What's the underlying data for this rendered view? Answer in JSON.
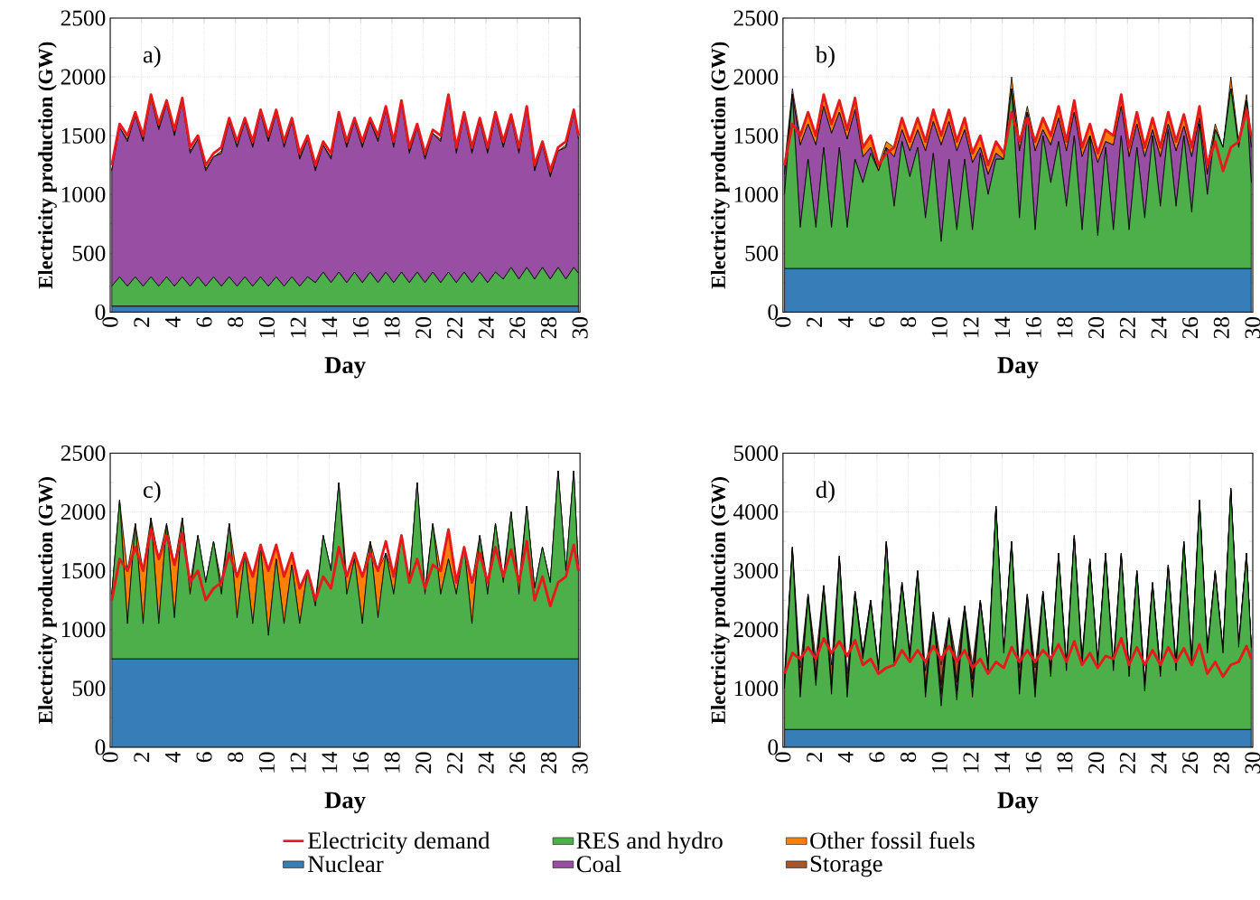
{
  "chart_data": [
    {
      "type": "area",
      "stacked": true,
      "xlabel": "Day",
      "ylabel": "Electricity production (GW)",
      "annotations": [
        "a)"
      ],
      "grid": true,
      "xlim": [
        0,
        30
      ],
      "xticks": [
        0,
        2,
        4,
        6,
        8,
        10,
        12,
        14,
        16,
        18,
        20,
        22,
        24,
        26,
        28,
        30
      ],
      "ylim": [
        0,
        2500
      ],
      "yticks": [
        0,
        500,
        1000,
        1500,
        2000,
        2500
      ],
      "x": [
        0.1,
        0.6,
        1.1,
        1.6,
        2.1,
        2.6,
        3.1,
        3.6,
        4.1,
        4.6,
        5.1,
        5.6,
        6.1,
        6.6,
        7.1,
        7.6,
        8.1,
        8.6,
        9.1,
        9.6,
        10.1,
        10.6,
        11.1,
        11.6,
        12.1,
        12.6,
        13.1,
        13.6,
        14.1,
        14.6,
        15.1,
        15.6,
        16.1,
        16.6,
        17.1,
        17.6,
        18.1,
        18.6,
        19.1,
        19.6,
        20.1,
        20.6,
        21.1,
        21.6,
        22.1,
        22.6,
        23.1,
        23.6,
        24.1,
        24.6,
        25.1,
        25.6,
        26.1,
        26.6,
        27.1,
        27.6,
        28.1,
        28.6,
        29.1,
        29.6,
        29.9
      ],
      "series": [
        {
          "color": "#377eb8",
          "values": [
            50,
            50,
            50,
            50,
            50,
            50,
            50,
            50,
            50,
            50,
            50,
            50,
            50,
            50,
            50,
            50,
            50,
            50,
            50,
            50,
            50,
            50,
            50,
            50,
            50,
            50,
            50,
            50,
            50,
            50,
            50,
            50,
            50,
            50,
            50,
            50,
            50,
            50,
            50,
            50,
            50,
            50,
            50,
            50,
            50,
            50,
            50,
            50,
            50,
            50,
            50,
            50,
            50,
            50,
            50,
            50,
            50,
            50,
            50,
            50,
            50
          ]
        },
        {
          "color": "#4daf4a",
          "values": [
            170,
            250,
            170,
            250,
            170,
            250,
            170,
            250,
            170,
            250,
            170,
            250,
            170,
            250,
            170,
            250,
            170,
            250,
            170,
            250,
            170,
            250,
            170,
            250,
            170,
            250,
            200,
            290,
            200,
            290,
            200,
            290,
            200,
            290,
            200,
            290,
            200,
            290,
            200,
            290,
            200,
            290,
            200,
            290,
            200,
            290,
            200,
            290,
            200,
            290,
            230,
            330,
            230,
            330,
            230,
            330,
            230,
            330,
            230,
            330,
            280
          ]
        },
        {
          "color": "#984ea3",
          "values": [
            980,
            1270,
            1230,
            1370,
            1230,
            1520,
            1330,
            1470,
            1280,
            1490,
            1130,
            1170,
            980,
            1020,
            1130,
            1320,
            1180,
            1320,
            1180,
            1390,
            1230,
            1390,
            1180,
            1320,
            1080,
            1170,
            950,
            1080,
            1050,
            1330,
            1150,
            1280,
            1150,
            1280,
            1200,
            1380,
            1150,
            1430,
            1100,
            1230,
            1050,
            1180,
            1200,
            1480,
            1100,
            1330,
            1100,
            1280,
            1100,
            1330,
            1120,
            1270,
            1070,
            1340,
            920,
            1040,
            870,
            990,
            1120,
            1310,
            1140
          ]
        },
        {
          "color": "#ff7f00",
          "values": [
            20,
            0,
            20,
            0,
            20,
            0,
            20,
            0,
            20,
            0,
            20,
            0,
            20,
            0,
            20,
            0,
            20,
            0,
            20,
            0,
            20,
            0,
            20,
            0,
            20,
            0,
            20,
            0,
            20,
            0,
            20,
            0,
            20,
            0,
            20,
            0,
            20,
            0,
            20,
            0,
            20,
            0,
            20,
            0,
            20,
            0,
            20,
            0,
            20,
            0,
            20,
            0,
            20,
            0,
            20,
            0,
            20,
            0,
            20,
            0,
            0
          ]
        },
        {
          "type": "line",
          "color": "#e41a1c",
          "values": [
            1250,
            1600,
            1500,
            1700,
            1500,
            1850,
            1600,
            1800,
            1550,
            1820,
            1400,
            1500,
            1250,
            1350,
            1400,
            1650,
            1450,
            1650,
            1450,
            1720,
            1500,
            1720,
            1450,
            1650,
            1350,
            1500,
            1250,
            1450,
            1350,
            1700,
            1450,
            1650,
            1450,
            1650,
            1500,
            1750,
            1450,
            1800,
            1400,
            1600,
            1350,
            1550,
            1500,
            1850,
            1400,
            1700,
            1400,
            1650,
            1400,
            1700,
            1450,
            1680,
            1400,
            1750,
            1250,
            1450,
            1200,
            1400,
            1450,
            1720,
            1500
          ]
        }
      ]
    },
    {
      "type": "area",
      "stacked": true,
      "xlabel": "Day",
      "ylabel": "Electricity production (GW)",
      "annotations": [
        "b)"
      ],
      "grid": true,
      "xlim": [
        0,
        30
      ],
      "xticks": [
        0,
        2,
        4,
        6,
        8,
        10,
        12,
        14,
        16,
        18,
        20,
        22,
        24,
        26,
        28,
        30
      ],
      "ylim": [
        0,
        2500
      ],
      "yticks": [
        0,
        500,
        1000,
        1500,
        2000,
        2500
      ],
      "x": [
        0.1,
        0.6,
        1.1,
        1.6,
        2.1,
        2.6,
        3.1,
        3.6,
        4.1,
        4.6,
        5.1,
        5.6,
        6.1,
        6.6,
        7.1,
        7.6,
        8.1,
        8.6,
        9.1,
        9.6,
        10.1,
        10.6,
        11.1,
        11.6,
        12.1,
        12.6,
        13.1,
        13.6,
        14.1,
        14.6,
        15.1,
        15.6,
        16.1,
        16.6,
        17.1,
        17.6,
        18.1,
        18.6,
        19.1,
        19.6,
        20.1,
        20.6,
        21.1,
        21.6,
        22.1,
        22.6,
        23.1,
        23.6,
        24.1,
        24.6,
        25.1,
        25.6,
        26.1,
        26.6,
        27.1,
        27.6,
        28.1,
        28.6,
        29.1,
        29.6,
        29.9
      ],
      "series": [
        {
          "color": "#377eb8",
          "values": [
            370,
            370,
            370,
            370,
            370,
            370,
            370,
            370,
            370,
            370,
            370,
            370,
            370,
            370,
            370,
            370,
            370,
            370,
            370,
            370,
            370,
            370,
            370,
            370,
            370,
            370,
            370,
            370,
            370,
            370,
            370,
            370,
            370,
            370,
            370,
            370,
            370,
            370,
            370,
            370,
            370,
            370,
            370,
            370,
            370,
            370,
            370,
            370,
            370,
            370,
            370,
            370,
            370,
            370,
            370,
            370,
            370,
            370,
            370,
            370,
            370
          ]
        },
        {
          "color": "#4daf4a",
          "values": [
            630,
            1480,
            350,
            930,
            350,
            1030,
            350,
            1030,
            350,
            930,
            730,
            980,
            830,
            1030,
            530,
            1080,
            780,
            1030,
            430,
            980,
            230,
            930,
            330,
            930,
            330,
            980,
            630,
            930,
            930,
            1530,
            430,
            1330,
            330,
            1130,
            730,
            1080,
            530,
            1130,
            330,
            1130,
            280,
            1030,
            330,
            1130,
            330,
            1030,
            430,
            1130,
            530,
            1180,
            530,
            1130,
            480,
            1230,
            630,
            1180,
            1030,
            1530,
            1030,
            1430,
            730
          ]
        },
        {
          "color": "#984ea3",
          "values": [
            170,
            0,
            700,
            300,
            700,
            350,
            800,
            300,
            750,
            420,
            220,
            50,
            0,
            0,
            420,
            100,
            220,
            150,
            570,
            270,
            820,
            320,
            670,
            250,
            570,
            50,
            170,
            50,
            0,
            0,
            570,
            0,
            670,
            50,
            320,
            200,
            470,
            200,
            620,
            0,
            620,
            50,
            720,
            250,
            620,
            200,
            520,
            50,
            420,
            50,
            470,
            80,
            470,
            50,
            170,
            0,
            0,
            0,
            0,
            0,
            300
          ]
        },
        {
          "color": "#ff7f00",
          "values": [
            80,
            50,
            80,
            100,
            80,
            100,
            80,
            100,
            80,
            100,
            80,
            100,
            50,
            50,
            80,
            100,
            80,
            100,
            80,
            100,
            80,
            100,
            80,
            100,
            80,
            100,
            80,
            100,
            50,
            100,
            80,
            50,
            80,
            100,
            80,
            100,
            80,
            100,
            80,
            100,
            80,
            100,
            80,
            100,
            80,
            100,
            80,
            100,
            80,
            100,
            80,
            100,
            80,
            100,
            80,
            50,
            0,
            100,
            50,
            50,
            100
          ]
        },
        {
          "type": "line",
          "color": "#e41a1c",
          "values": [
            1250,
            1600,
            1500,
            1700,
            1500,
            1850,
            1600,
            1800,
            1550,
            1820,
            1400,
            1500,
            1250,
            1350,
            1400,
            1650,
            1450,
            1650,
            1450,
            1720,
            1500,
            1720,
            1450,
            1650,
            1350,
            1500,
            1250,
            1450,
            1350,
            1700,
            1450,
            1650,
            1450,
            1650,
            1500,
            1750,
            1450,
            1800,
            1400,
            1600,
            1350,
            1550,
            1500,
            1850,
            1400,
            1700,
            1400,
            1650,
            1400,
            1700,
            1450,
            1680,
            1400,
            1750,
            1250,
            1450,
            1200,
            1400,
            1450,
            1720,
            1500
          ]
        }
      ]
    },
    {
      "type": "area",
      "stacked": true,
      "xlabel": "Day",
      "ylabel": "Electricity production (GW)",
      "annotations": [
        "c)"
      ],
      "grid": true,
      "xlim": [
        0,
        30
      ],
      "xticks": [
        0,
        2,
        4,
        6,
        8,
        10,
        12,
        14,
        16,
        18,
        20,
        22,
        24,
        26,
        28,
        30
      ],
      "ylim": [
        0,
        2500
      ],
      "yticks": [
        0,
        500,
        1000,
        1500,
        2000,
        2500
      ],
      "x": [
        0.1,
        0.6,
        1.1,
        1.6,
        2.1,
        2.6,
        3.1,
        3.6,
        4.1,
        4.6,
        5.1,
        5.6,
        6.1,
        6.6,
        7.1,
        7.6,
        8.1,
        8.6,
        9.1,
        9.6,
        10.1,
        10.6,
        11.1,
        11.6,
        12.1,
        12.6,
        13.1,
        13.6,
        14.1,
        14.6,
        15.1,
        15.6,
        16.1,
        16.6,
        17.1,
        17.6,
        18.1,
        18.6,
        19.1,
        19.6,
        20.1,
        20.6,
        21.1,
        21.6,
        22.1,
        22.6,
        23.1,
        23.6,
        24.1,
        24.6,
        25.1,
        25.6,
        26.1,
        26.6,
        27.1,
        27.6,
        28.1,
        28.6,
        29.1,
        29.6,
        29.9
      ],
      "series": [
        {
          "color": "#377eb8",
          "values": [
            750,
            750,
            750,
            750,
            750,
            750,
            750,
            750,
            750,
            750,
            750,
            750,
            750,
            750,
            750,
            750,
            750,
            750,
            750,
            750,
            750,
            750,
            750,
            750,
            750,
            750,
            750,
            750,
            750,
            750,
            750,
            750,
            750,
            750,
            750,
            750,
            750,
            750,
            750,
            750,
            750,
            750,
            750,
            750,
            750,
            750,
            750,
            750,
            750,
            750,
            750,
            750,
            750,
            750,
            750,
            750,
            750,
            750,
            750,
            750,
            750
          ]
        },
        {
          "color": "#4daf4a",
          "values": [
            550,
            1350,
            300,
            1150,
            300,
            1200,
            300,
            1150,
            350,
            1200,
            550,
            1050,
            650,
            1000,
            550,
            1150,
            350,
            900,
            300,
            950,
            200,
            850,
            300,
            800,
            300,
            750,
            450,
            1050,
            750,
            1500,
            550,
            850,
            300,
            1000,
            350,
            900,
            550,
            1050,
            650,
            1500,
            550,
            1150,
            550,
            850,
            550,
            950,
            300,
            1050,
            550,
            1150,
            650,
            1250,
            550,
            1300,
            600,
            950,
            650,
            1600,
            750,
            1600,
            750
          ]
        },
        {
          "color": "#ff7f00",
          "values": [
            0,
            0,
            450,
            0,
            450,
            0,
            550,
            0,
            450,
            0,
            100,
            0,
            0,
            0,
            100,
            0,
            350,
            0,
            400,
            0,
            550,
            120,
            400,
            100,
            300,
            0,
            50,
            0,
            0,
            0,
            150,
            50,
            400,
            0,
            400,
            0,
            150,
            0,
            0,
            0,
            50,
            0,
            200,
            250,
            100,
            0,
            350,
            0,
            100,
            0,
            50,
            0,
            100,
            0,
            0,
            0,
            0,
            0,
            0,
            0,
            0
          ]
        },
        {
          "type": "line",
          "color": "#e41a1c",
          "values": [
            1250,
            1600,
            1500,
            1700,
            1500,
            1850,
            1600,
            1800,
            1550,
            1820,
            1400,
            1500,
            1250,
            1350,
            1400,
            1650,
            1450,
            1650,
            1450,
            1720,
            1500,
            1720,
            1450,
            1650,
            1350,
            1500,
            1250,
            1450,
            1350,
            1700,
            1450,
            1650,
            1450,
            1650,
            1500,
            1750,
            1450,
            1800,
            1400,
            1600,
            1350,
            1550,
            1500,
            1850,
            1400,
            1700,
            1400,
            1650,
            1400,
            1700,
            1450,
            1680,
            1400,
            1750,
            1250,
            1450,
            1200,
            1400,
            1450,
            1720,
            1500
          ]
        }
      ]
    },
    {
      "type": "area",
      "stacked": true,
      "xlabel": "Day",
      "ylabel": "Electricity production (GW)",
      "annotations": [
        "d)"
      ],
      "grid": true,
      "legend": "bottom",
      "xlim": [
        0,
        30
      ],
      "xticks": [
        0,
        2,
        4,
        6,
        8,
        10,
        12,
        14,
        16,
        18,
        20,
        22,
        24,
        26,
        28,
        30
      ],
      "ylim": [
        0,
        5000
      ],
      "yticks": [
        0,
        1000,
        2000,
        3000,
        4000,
        5000
      ],
      "x": [
        0.1,
        0.6,
        1.1,
        1.6,
        2.1,
        2.6,
        3.1,
        3.6,
        4.1,
        4.6,
        5.1,
        5.6,
        6.1,
        6.6,
        7.1,
        7.6,
        8.1,
        8.6,
        9.1,
        9.6,
        10.1,
        10.6,
        11.1,
        11.6,
        12.1,
        12.6,
        13.1,
        13.6,
        14.1,
        14.6,
        15.1,
        15.6,
        16.1,
        16.6,
        17.1,
        17.6,
        18.1,
        18.6,
        19.1,
        19.6,
        20.1,
        20.6,
        21.1,
        21.6,
        22.1,
        22.6,
        23.1,
        23.6,
        24.1,
        24.6,
        25.1,
        25.6,
        26.1,
        26.6,
        27.1,
        27.6,
        28.1,
        28.6,
        29.1,
        29.6,
        29.9
      ],
      "series": [
        {
          "name": "Nuclear",
          "color": "#377eb8",
          "values": [
            300,
            300,
            300,
            300,
            300,
            300,
            300,
            300,
            300,
            300,
            300,
            300,
            300,
            300,
            300,
            300,
            300,
            300,
            300,
            300,
            300,
            300,
            300,
            300,
            300,
            300,
            300,
            300,
            300,
            300,
            300,
            300,
            300,
            300,
            300,
            300,
            300,
            300,
            300,
            300,
            300,
            300,
            300,
            300,
            300,
            300,
            300,
            300,
            300,
            300,
            300,
            300,
            300,
            300,
            300,
            300,
            300,
            300,
            300,
            300,
            300
          ]
        },
        {
          "name": "RES and hydro",
          "color": "#4daf4a",
          "values": [
            700,
            3050,
            550,
            2250,
            750,
            2400,
            600,
            2900,
            550,
            2300,
            1200,
            2150,
            1000,
            3150,
            1100,
            2450,
            1200,
            2650,
            550,
            1950,
            400,
            1850,
            500,
            2050,
            550,
            2150,
            1000,
            3750,
            1300,
            3150,
            600,
            2250,
            550,
            2300,
            900,
            2950,
            1000,
            3250,
            1100,
            2850,
            1100,
            2950,
            1000,
            2950,
            900,
            2650,
            650,
            2450,
            900,
            2750,
            1000,
            3150,
            1100,
            3850,
            1300,
            2650,
            1300,
            4050,
            1400,
            2950,
            1400
          ]
        },
        {
          "name": "Coal",
          "color": "#984ea3",
          "values": [
            0,
            0,
            0,
            0,
            0,
            0,
            0,
            0,
            0,
            0,
            0,
            0,
            0,
            0,
            0,
            0,
            0,
            0,
            0,
            0,
            200,
            0,
            150,
            0,
            150,
            0,
            0,
            0,
            0,
            0,
            0,
            0,
            50,
            0,
            0,
            0,
            0,
            0,
            0,
            0,
            0,
            0,
            0,
            0,
            0,
            0,
            0,
            0,
            0,
            0,
            0,
            0,
            0,
            0,
            0,
            0,
            0,
            0,
            0,
            0,
            0
          ]
        },
        {
          "name": "Other fossil fuels",
          "color": "#ff7f00",
          "values": [
            150,
            50,
            150,
            50,
            150,
            50,
            150,
            50,
            150,
            50,
            100,
            50,
            50,
            50,
            100,
            50,
            100,
            50,
            150,
            50,
            150,
            50,
            150,
            50,
            150,
            50,
            100,
            50,
            50,
            50,
            150,
            50,
            150,
            50,
            100,
            50,
            100,
            50,
            100,
            50,
            50,
            50,
            100,
            50,
            100,
            50,
            150,
            50,
            100,
            50,
            100,
            50,
            100,
            50,
            50,
            50,
            50,
            50,
            50,
            50,
            0
          ]
        },
        {
          "name": "Storage",
          "color": "#a65628",
          "values": [
            100,
            0,
            350,
            0,
            300,
            0,
            350,
            0,
            250,
            0,
            0,
            0,
            0,
            0,
            0,
            0,
            0,
            0,
            300,
            0,
            350,
            0,
            350,
            0,
            250,
            0,
            0,
            0,
            0,
            0,
            300,
            0,
            300,
            0,
            0,
            0,
            0,
            0,
            0,
            0,
            0,
            0,
            0,
            0,
            0,
            0,
            0,
            0,
            0,
            0,
            0,
            0,
            0,
            0,
            0,
            0,
            0,
            0,
            0,
            0,
            0
          ]
        },
        {
          "name": "Electricity demand",
          "type": "line",
          "color": "#e41a1c",
          "values": [
            1250,
            1600,
            1500,
            1700,
            1500,
            1850,
            1600,
            1800,
            1550,
            1820,
            1400,
            1500,
            1250,
            1350,
            1400,
            1650,
            1450,
            1650,
            1450,
            1720,
            1500,
            1720,
            1450,
            1650,
            1350,
            1500,
            1250,
            1450,
            1350,
            1700,
            1450,
            1650,
            1450,
            1650,
            1500,
            1750,
            1450,
            1800,
            1400,
            1600,
            1350,
            1550,
            1500,
            1850,
            1400,
            1700,
            1400,
            1650,
            1400,
            1700,
            1450,
            1680,
            1400,
            1750,
            1250,
            1450,
            1200,
            1400,
            1450,
            1720,
            1500
          ]
        }
      ]
    }
  ]
}
